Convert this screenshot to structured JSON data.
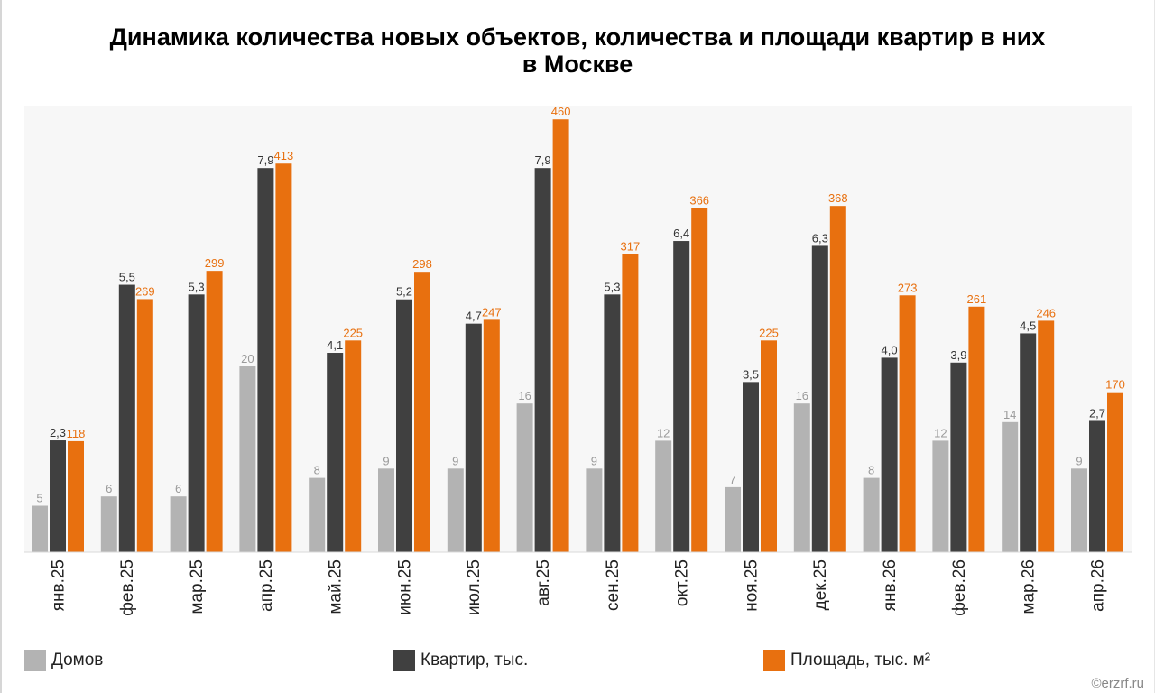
{
  "title_line1": "Динамика количества новых объектов, количества и площади квартир в них",
  "title_line2": "в Москве",
  "copyright": "©erzrf.ru",
  "colors": {
    "houses": "#b3b3b3",
    "apartments": "#404040",
    "area": "#e8700f",
    "background": "#f7f7f7"
  },
  "chart_data": {
    "type": "bar",
    "title": "Динамика количества новых объектов, количества и площади квартир в них в Москве",
    "categories": [
      "янв.25",
      "фев.25",
      "мар.25",
      "апр.25",
      "май.25",
      "июн.25",
      "июл.25",
      "авг.25",
      "сен.25",
      "окт.25",
      "ноя.25",
      "дек.25",
      "янв.26",
      "фев.26",
      "мар.26",
      "апр.26"
    ],
    "legend_position": "bottom",
    "grid": false,
    "series": [
      {
        "name": "Домов",
        "color": "#b3b3b3",
        "values": [
          5,
          6,
          6,
          20,
          8,
          9,
          9,
          16,
          9,
          12,
          7,
          16,
          8,
          12,
          14,
          9
        ],
        "labels": [
          "5",
          "6",
          "6",
          "20",
          "8",
          "9",
          "9",
          "16",
          "9",
          "12",
          "7",
          "16",
          "8",
          "12",
          "14",
          "9"
        ]
      },
      {
        "name": "Квартир, тыс.",
        "color": "#404040",
        "values": [
          2.3,
          5.5,
          5.3,
          7.9,
          4.1,
          5.2,
          4.7,
          7.9,
          5.3,
          6.4,
          3.5,
          6.3,
          4.0,
          3.9,
          4.5,
          2.7
        ],
        "labels": [
          "2,3",
          "5,5",
          "5,3",
          "7,9",
          "4,1",
          "5,2",
          "4,7",
          "7,9",
          "5,3",
          "6,4",
          "3,5",
          "6,3",
          "4,0",
          "3,9",
          "4,5",
          "2,7"
        ]
      },
      {
        "name": "Площадь, тыс. м²",
        "color": "#e8700f",
        "values": [
          118,
          269,
          299,
          413,
          225,
          298,
          247,
          460,
          317,
          366,
          225,
          368,
          273,
          261,
          246,
          170
        ],
        "labels": [
          "118",
          "269",
          "299",
          "413",
          "225",
          "298",
          "247",
          "460",
          "317",
          "366",
          "225",
          "368",
          "273",
          "261",
          "246",
          "170"
        ]
      }
    ]
  }
}
